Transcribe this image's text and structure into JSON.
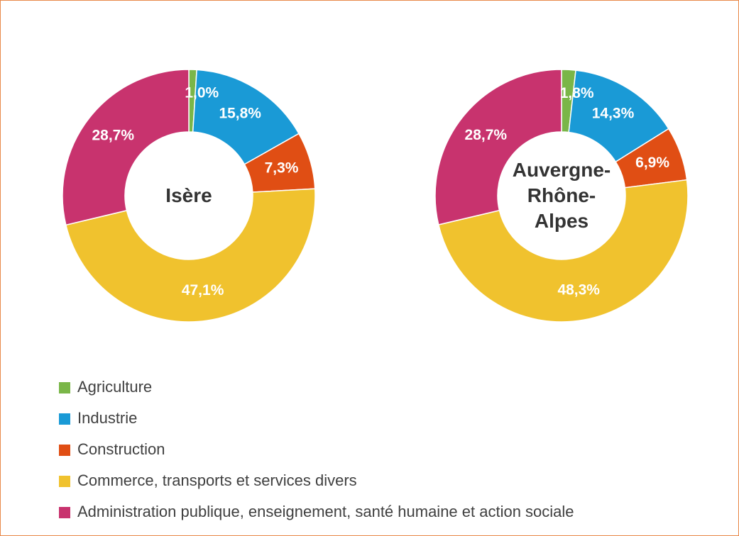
{
  "chart_data": [
    {
      "type": "donut",
      "center_label": "Isère",
      "categories": [
        "Agriculture",
        "Industrie",
        "Construction",
        "Commerce, transports et services divers",
        "Administration publique, enseignement, santé humaine et action sociale"
      ],
      "values": [
        1.0,
        15.8,
        7.3,
        47.1,
        28.7
      ],
      "value_labels": [
        "1,0%",
        "15,8%",
        "7,3%",
        "47,1%",
        "28,7%"
      ],
      "colors": [
        "#7ab648",
        "#1a9ad6",
        "#e04e14",
        "#f0c22e",
        "#c8336e"
      ]
    },
    {
      "type": "donut",
      "center_label": "Auvergne-Rhône-Alpes",
      "categories": [
        "Agriculture",
        "Industrie",
        "Construction",
        "Commerce, transports et services divers",
        "Administration publique, enseignement, santé humaine et action sociale"
      ],
      "values": [
        1.8,
        14.3,
        6.9,
        48.3,
        28.7
      ],
      "value_labels": [
        "1,8%",
        "14,3%",
        "6,9%",
        "48,3%",
        "28,7%"
      ],
      "colors": [
        "#7ab648",
        "#1a9ad6",
        "#e04e14",
        "#f0c22e",
        "#c8336e"
      ]
    }
  ]
}
